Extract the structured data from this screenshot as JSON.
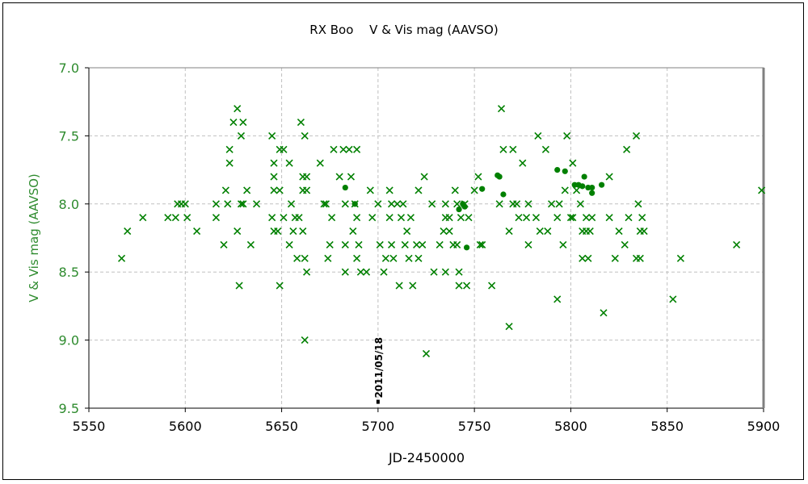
{
  "chart_data": {
    "type": "scatter",
    "title": "RX Boo　 V & Vis mag (AAVSO)",
    "xlabel": "JD-2450000",
    "ylabel": "V & Vis mag (AAVSO)",
    "xlim": [
      5550,
      5900
    ],
    "ylim": [
      7.0,
      9.5
    ],
    "y_inverted": true,
    "x_ticks": [
      5550,
      5600,
      5650,
      5700,
      5750,
      5800,
      5850,
      5900
    ],
    "x_tick_labels": [
      "5550",
      "5600",
      "5650",
      "5700",
      "5750",
      "5800",
      "5850",
      "5900"
    ],
    "y_ticks": [
      7.0,
      7.5,
      8.0,
      8.5,
      9.0,
      9.5
    ],
    "y_tick_labels": [
      "7.0",
      "7.5",
      "8.0",
      "8.5",
      "9.0",
      "9.5"
    ],
    "grid": true,
    "colors": {
      "points": "#008000",
      "grid": "#c0c0c0",
      "ytick_text": "#2e8b2e"
    },
    "annotation": {
      "text": "2011/05/18",
      "x": 5700,
      "y": 9.45
    },
    "series": [
      {
        "marker": "cross",
        "points": [
          [
            5567,
            8.4
          ],
          [
            5570,
            8.2
          ],
          [
            5578,
            8.1
          ],
          [
            5591,
            8.1
          ],
          [
            5595,
            8.1
          ],
          [
            5601,
            8.1
          ],
          [
            5596,
            8.0
          ],
          [
            5598,
            8.0
          ],
          [
            5600,
            8.0
          ],
          [
            5606,
            8.2
          ],
          [
            5616,
            8.0
          ],
          [
            5616,
            8.1
          ],
          [
            5620,
            8.3
          ],
          [
            5621,
            7.9
          ],
          [
            5622,
            8.0
          ],
          [
            5623,
            7.7
          ],
          [
            5623,
            7.6
          ],
          [
            5625,
            7.4
          ],
          [
            5627,
            7.3
          ],
          [
            5630,
            7.4
          ],
          [
            5629,
            7.5
          ],
          [
            5627,
            8.2
          ],
          [
            5628,
            8.6
          ],
          [
            5629,
            8.0
          ],
          [
            5630,
            8.0
          ],
          [
            5632,
            7.9
          ],
          [
            5634,
            8.3
          ],
          [
            5637,
            8.0
          ],
          [
            5645,
            7.5
          ],
          [
            5646,
            7.7
          ],
          [
            5646,
            7.8
          ],
          [
            5646,
            7.9
          ],
          [
            5645,
            8.1
          ],
          [
            5646,
            8.2
          ],
          [
            5648,
            8.2
          ],
          [
            5649,
            7.9
          ],
          [
            5649,
            7.6
          ],
          [
            5651,
            7.6
          ],
          [
            5649,
            8.6
          ],
          [
            5654,
            8.3
          ],
          [
            5651,
            8.1
          ],
          [
            5654,
            7.7
          ],
          [
            5655,
            8.0
          ],
          [
            5657,
            8.1
          ],
          [
            5658,
            8.4
          ],
          [
            5659,
            8.1
          ],
          [
            5660,
            7.4
          ],
          [
            5661,
            7.8
          ],
          [
            5662,
            7.5
          ],
          [
            5662,
            8.4
          ],
          [
            5661,
            7.9
          ],
          [
            5663,
            7.9
          ],
          [
            5663,
            8.5
          ],
          [
            5662,
            9.0
          ],
          [
            5661,
            8.2
          ],
          [
            5656,
            8.2
          ],
          [
            5663,
            7.8
          ],
          [
            5670,
            7.7
          ],
          [
            5672,
            8.0
          ],
          [
            5673,
            8.0
          ],
          [
            5674,
            8.4
          ],
          [
            5675,
            8.3
          ],
          [
            5676,
            8.1
          ],
          [
            5677,
            7.6
          ],
          [
            5680,
            7.8
          ],
          [
            5682,
            7.6
          ],
          [
            5683,
            8.0
          ],
          [
            5683,
            8.3
          ],
          [
            5683,
            8.5
          ],
          [
            5685,
            7.6
          ],
          [
            5686,
            7.8
          ],
          [
            5687,
            8.2
          ],
          [
            5689,
            7.6
          ],
          [
            5688,
            8.0
          ],
          [
            5689,
            8.1
          ],
          [
            5689,
            8.4
          ],
          [
            5690,
            8.3
          ],
          [
            5691,
            8.5
          ],
          [
            5694,
            8.5
          ],
          [
            5696,
            7.9
          ],
          [
            5697,
            8.1
          ],
          [
            5700,
            8.0
          ],
          [
            5701,
            8.3
          ],
          [
            5703,
            8.5
          ],
          [
            5704,
            8.4
          ],
          [
            5706,
            7.9
          ],
          [
            5706,
            8.1
          ],
          [
            5707,
            8.3
          ],
          [
            5708,
            8.4
          ],
          [
            5707,
            8.0
          ],
          [
            5710,
            8.0
          ],
          [
            5711,
            8.6
          ],
          [
            5712,
            8.1
          ],
          [
            5713,
            8.0
          ],
          [
            5714,
            8.3
          ],
          [
            5715,
            8.2
          ],
          [
            5717,
            8.1
          ],
          [
            5716,
            8.4
          ],
          [
            5718,
            8.6
          ],
          [
            5720,
            8.3
          ],
          [
            5721,
            7.9
          ],
          [
            5721,
            8.4
          ],
          [
            5723,
            8.3
          ],
          [
            5724,
            7.8
          ],
          [
            5725,
            9.1
          ],
          [
            5728,
            8.0
          ],
          [
            5729,
            8.5
          ],
          [
            5732,
            8.3
          ],
          [
            5734,
            8.2
          ],
          [
            5735,
            8.1
          ],
          [
            5735,
            8.0
          ],
          [
            5735,
            8.5
          ],
          [
            5737,
            8.1
          ],
          [
            5737,
            8.2
          ],
          [
            5739,
            8.3
          ],
          [
            5740,
            7.9
          ],
          [
            5741,
            8.0
          ],
          [
            5741,
            8.3
          ],
          [
            5742,
            8.5
          ],
          [
            5742,
            8.6
          ],
          [
            5743,
            8.1
          ],
          [
            5745,
            8.0
          ],
          [
            5746,
            8.6
          ],
          [
            5747,
            8.1
          ],
          [
            5750,
            7.9
          ],
          [
            5752,
            7.8
          ],
          [
            5753,
            8.3
          ],
          [
            5754,
            8.3
          ],
          [
            5759,
            8.6
          ],
          [
            5763,
            8.0
          ],
          [
            5764,
            7.3
          ],
          [
            5765,
            7.6
          ],
          [
            5768,
            8.9
          ],
          [
            5768,
            8.2
          ],
          [
            5770,
            7.6
          ],
          [
            5770,
            8.0
          ],
          [
            5772,
            8.0
          ],
          [
            5773,
            8.1
          ],
          [
            5775,
            7.7
          ],
          [
            5777,
            8.1
          ],
          [
            5778,
            8.3
          ],
          [
            5778,
            8.0
          ],
          [
            5782,
            8.1
          ],
          [
            5783,
            7.5
          ],
          [
            5784,
            8.2
          ],
          [
            5787,
            7.6
          ],
          [
            5788,
            8.2
          ],
          [
            5790,
            8.0
          ],
          [
            5793,
            8.7
          ],
          [
            5793,
            8.1
          ],
          [
            5794,
            8.0
          ],
          [
            5796,
            8.3
          ],
          [
            5798,
            7.5
          ],
          [
            5797,
            7.9
          ],
          [
            5800,
            8.1
          ],
          [
            5801,
            7.7
          ],
          [
            5801,
            8.1
          ],
          [
            5803,
            7.9
          ],
          [
            5805,
            8.0
          ],
          [
            5806,
            8.4
          ],
          [
            5806,
            8.2
          ],
          [
            5808,
            8.2
          ],
          [
            5808,
            8.1
          ],
          [
            5809,
            8.4
          ],
          [
            5810,
            8.2
          ],
          [
            5811,
            8.1
          ],
          [
            5817,
            8.8
          ],
          [
            5820,
            7.8
          ],
          [
            5820,
            8.1
          ],
          [
            5823,
            8.4
          ],
          [
            5825,
            8.2
          ],
          [
            5828,
            8.3
          ],
          [
            5829,
            7.6
          ],
          [
            5830,
            8.1
          ],
          [
            5834,
            7.5
          ],
          [
            5835,
            8.0
          ],
          [
            5834,
            8.4
          ],
          [
            5836,
            8.4
          ],
          [
            5836,
            8.2
          ],
          [
            5838,
            8.2
          ],
          [
            5837,
            8.1
          ],
          [
            5853,
            8.7
          ],
          [
            5857,
            8.4
          ],
          [
            5886,
            8.3
          ],
          [
            5899,
            7.9
          ]
        ]
      },
      {
        "marker": "dot",
        "points": [
          [
            5683,
            7.88
          ],
          [
            5688,
            8.0
          ],
          [
            5742,
            8.04
          ],
          [
            5744,
            8.0
          ],
          [
            5745,
            8.02
          ],
          [
            5746,
            8.32
          ],
          [
            5754,
            7.89
          ],
          [
            5762,
            7.79
          ],
          [
            5763,
            7.8
          ],
          [
            5765,
            7.93
          ],
          [
            5793,
            7.75
          ],
          [
            5797,
            7.76
          ],
          [
            5802,
            7.86
          ],
          [
            5804,
            7.86
          ],
          [
            5806,
            7.87
          ],
          [
            5807,
            7.8
          ],
          [
            5809,
            7.88
          ],
          [
            5811,
            7.88
          ],
          [
            5811,
            7.92
          ],
          [
            5816,
            7.86
          ]
        ]
      }
    ]
  }
}
